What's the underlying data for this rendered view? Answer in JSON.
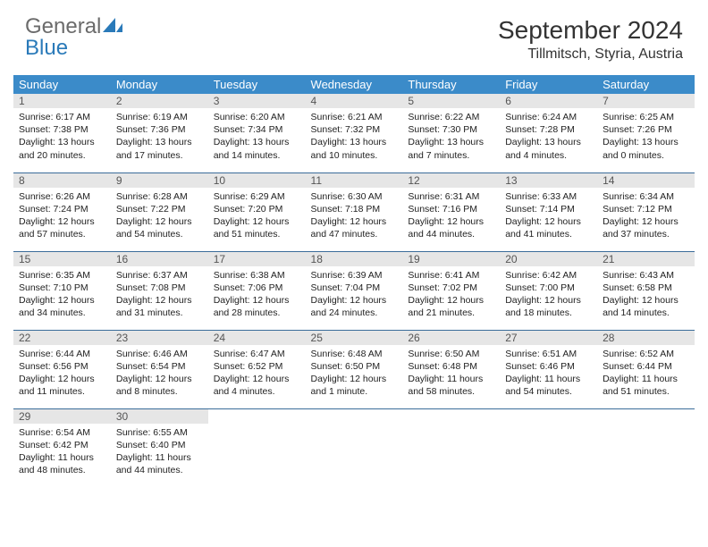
{
  "logo": {
    "general": "General",
    "blue": "Blue"
  },
  "header": {
    "month_title": "September 2024",
    "location": "Tillmitsch, Styria, Austria"
  },
  "colors": {
    "header_bg": "#3b8bc9",
    "header_text": "#ffffff",
    "daynum_bg": "#e6e6e6",
    "row_divider": "#3b6d9a",
    "logo_blue": "#2a7ab9",
    "logo_gray": "#6b6b6b"
  },
  "calendar": {
    "weekdays": [
      "Sunday",
      "Monday",
      "Tuesday",
      "Wednesday",
      "Thursday",
      "Friday",
      "Saturday"
    ],
    "weeks": [
      [
        {
          "n": "1",
          "sr": "Sunrise: 6:17 AM",
          "ss": "Sunset: 7:38 PM",
          "d1": "Daylight: 13 hours",
          "d2": "and 20 minutes."
        },
        {
          "n": "2",
          "sr": "Sunrise: 6:19 AM",
          "ss": "Sunset: 7:36 PM",
          "d1": "Daylight: 13 hours",
          "d2": "and 17 minutes."
        },
        {
          "n": "3",
          "sr": "Sunrise: 6:20 AM",
          "ss": "Sunset: 7:34 PM",
          "d1": "Daylight: 13 hours",
          "d2": "and 14 minutes."
        },
        {
          "n": "4",
          "sr": "Sunrise: 6:21 AM",
          "ss": "Sunset: 7:32 PM",
          "d1": "Daylight: 13 hours",
          "d2": "and 10 minutes."
        },
        {
          "n": "5",
          "sr": "Sunrise: 6:22 AM",
          "ss": "Sunset: 7:30 PM",
          "d1": "Daylight: 13 hours",
          "d2": "and 7 minutes."
        },
        {
          "n": "6",
          "sr": "Sunrise: 6:24 AM",
          "ss": "Sunset: 7:28 PM",
          "d1": "Daylight: 13 hours",
          "d2": "and 4 minutes."
        },
        {
          "n": "7",
          "sr": "Sunrise: 6:25 AM",
          "ss": "Sunset: 7:26 PM",
          "d1": "Daylight: 13 hours",
          "d2": "and 0 minutes."
        }
      ],
      [
        {
          "n": "8",
          "sr": "Sunrise: 6:26 AM",
          "ss": "Sunset: 7:24 PM",
          "d1": "Daylight: 12 hours",
          "d2": "and 57 minutes."
        },
        {
          "n": "9",
          "sr": "Sunrise: 6:28 AM",
          "ss": "Sunset: 7:22 PM",
          "d1": "Daylight: 12 hours",
          "d2": "and 54 minutes."
        },
        {
          "n": "10",
          "sr": "Sunrise: 6:29 AM",
          "ss": "Sunset: 7:20 PM",
          "d1": "Daylight: 12 hours",
          "d2": "and 51 minutes."
        },
        {
          "n": "11",
          "sr": "Sunrise: 6:30 AM",
          "ss": "Sunset: 7:18 PM",
          "d1": "Daylight: 12 hours",
          "d2": "and 47 minutes."
        },
        {
          "n": "12",
          "sr": "Sunrise: 6:31 AM",
          "ss": "Sunset: 7:16 PM",
          "d1": "Daylight: 12 hours",
          "d2": "and 44 minutes."
        },
        {
          "n": "13",
          "sr": "Sunrise: 6:33 AM",
          "ss": "Sunset: 7:14 PM",
          "d1": "Daylight: 12 hours",
          "d2": "and 41 minutes."
        },
        {
          "n": "14",
          "sr": "Sunrise: 6:34 AM",
          "ss": "Sunset: 7:12 PM",
          "d1": "Daylight: 12 hours",
          "d2": "and 37 minutes."
        }
      ],
      [
        {
          "n": "15",
          "sr": "Sunrise: 6:35 AM",
          "ss": "Sunset: 7:10 PM",
          "d1": "Daylight: 12 hours",
          "d2": "and 34 minutes."
        },
        {
          "n": "16",
          "sr": "Sunrise: 6:37 AM",
          "ss": "Sunset: 7:08 PM",
          "d1": "Daylight: 12 hours",
          "d2": "and 31 minutes."
        },
        {
          "n": "17",
          "sr": "Sunrise: 6:38 AM",
          "ss": "Sunset: 7:06 PM",
          "d1": "Daylight: 12 hours",
          "d2": "and 28 minutes."
        },
        {
          "n": "18",
          "sr": "Sunrise: 6:39 AM",
          "ss": "Sunset: 7:04 PM",
          "d1": "Daylight: 12 hours",
          "d2": "and 24 minutes."
        },
        {
          "n": "19",
          "sr": "Sunrise: 6:41 AM",
          "ss": "Sunset: 7:02 PM",
          "d1": "Daylight: 12 hours",
          "d2": "and 21 minutes."
        },
        {
          "n": "20",
          "sr": "Sunrise: 6:42 AM",
          "ss": "Sunset: 7:00 PM",
          "d1": "Daylight: 12 hours",
          "d2": "and 18 minutes."
        },
        {
          "n": "21",
          "sr": "Sunrise: 6:43 AM",
          "ss": "Sunset: 6:58 PM",
          "d1": "Daylight: 12 hours",
          "d2": "and 14 minutes."
        }
      ],
      [
        {
          "n": "22",
          "sr": "Sunrise: 6:44 AM",
          "ss": "Sunset: 6:56 PM",
          "d1": "Daylight: 12 hours",
          "d2": "and 11 minutes."
        },
        {
          "n": "23",
          "sr": "Sunrise: 6:46 AM",
          "ss": "Sunset: 6:54 PM",
          "d1": "Daylight: 12 hours",
          "d2": "and 8 minutes."
        },
        {
          "n": "24",
          "sr": "Sunrise: 6:47 AM",
          "ss": "Sunset: 6:52 PM",
          "d1": "Daylight: 12 hours",
          "d2": "and 4 minutes."
        },
        {
          "n": "25",
          "sr": "Sunrise: 6:48 AM",
          "ss": "Sunset: 6:50 PM",
          "d1": "Daylight: 12 hours",
          "d2": "and 1 minute."
        },
        {
          "n": "26",
          "sr": "Sunrise: 6:50 AM",
          "ss": "Sunset: 6:48 PM",
          "d1": "Daylight: 11 hours",
          "d2": "and 58 minutes."
        },
        {
          "n": "27",
          "sr": "Sunrise: 6:51 AM",
          "ss": "Sunset: 6:46 PM",
          "d1": "Daylight: 11 hours",
          "d2": "and 54 minutes."
        },
        {
          "n": "28",
          "sr": "Sunrise: 6:52 AM",
          "ss": "Sunset: 6:44 PM",
          "d1": "Daylight: 11 hours",
          "d2": "and 51 minutes."
        }
      ],
      [
        {
          "n": "29",
          "sr": "Sunrise: 6:54 AM",
          "ss": "Sunset: 6:42 PM",
          "d1": "Daylight: 11 hours",
          "d2": "and 48 minutes."
        },
        {
          "n": "30",
          "sr": "Sunrise: 6:55 AM",
          "ss": "Sunset: 6:40 PM",
          "d1": "Daylight: 11 hours",
          "d2": "and 44 minutes."
        },
        {
          "empty": true
        },
        {
          "empty": true
        },
        {
          "empty": true
        },
        {
          "empty": true
        },
        {
          "empty": true
        }
      ]
    ]
  }
}
